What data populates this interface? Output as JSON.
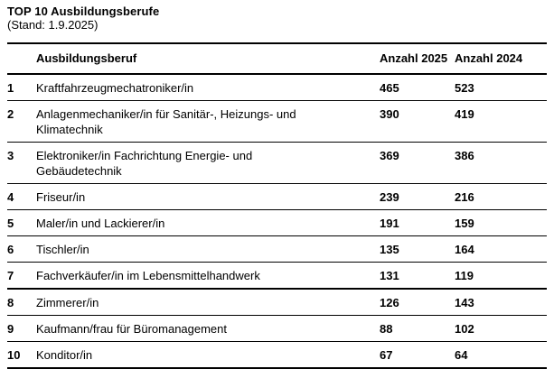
{
  "header": {
    "title": "TOP 10 Ausbildungsberufe",
    "subtitle": "(Stand: 1.9.2025)"
  },
  "table": {
    "columns": {
      "rank": "",
      "occupation": "Ausbildungsberuf",
      "count2025": "Anzahl 2025",
      "count2024": "Anzahl 2024"
    },
    "rows": [
      {
        "rank": "1",
        "occupation": "Kraftfahrzeugmechatroniker/in",
        "count2025": "465",
        "count2024": "523"
      },
      {
        "rank": "2",
        "occupation": "Anlagenmechaniker/in für Sanitär-, Heizungs- und\nKlimatechnik",
        "count2025": "390",
        "count2024": "419"
      },
      {
        "rank": "3",
        "occupation": "Elektroniker/in Fachrichtung Energie- und\nGebäudetechnik",
        "count2025": "369",
        "count2024": "386"
      },
      {
        "rank": "4",
        "occupation": "Friseur/in",
        "count2025": "239",
        "count2024": "216"
      },
      {
        "rank": "5",
        "occupation": "Maler/in und Lackierer/in",
        "count2025": "191",
        "count2024": "159"
      },
      {
        "rank": "6",
        "occupation": "Tischler/in",
        "count2025": "135",
        "count2024": "164"
      },
      {
        "rank": "7",
        "occupation": "Fachverkäufer/in im Lebensmittelhandwerk",
        "count2025": "131",
        "count2024": "119"
      },
      {
        "rank": "8",
        "occupation": "Zimmerer/in",
        "count2025": "126",
        "count2024": "143"
      },
      {
        "rank": "9",
        "occupation": "Kaufmann/frau für Büromanagement",
        "count2025": "88",
        "count2024": "102"
      },
      {
        "rank": "10",
        "occupation": "Konditor/in",
        "count2025": "67",
        "count2024": "64"
      }
    ]
  },
  "colors": {
    "text": "#000000",
    "background": "#ffffff",
    "rule": "#000000"
  }
}
